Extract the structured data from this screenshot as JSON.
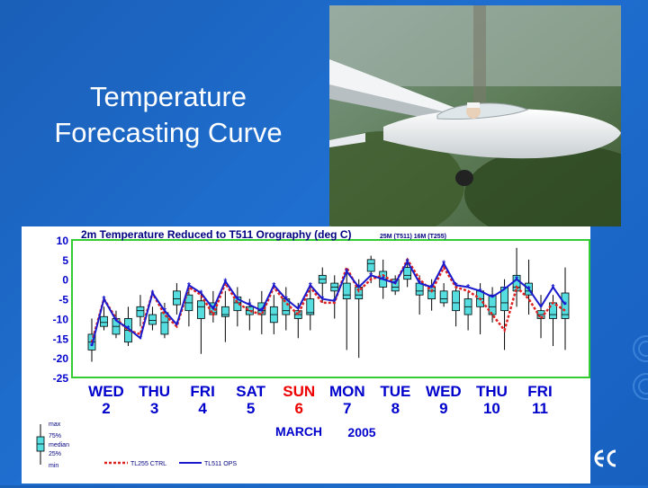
{
  "slide": {
    "title_line1": "Temperature",
    "title_line2": "Forecasting Curve"
  },
  "colors": {
    "background": "#1a5fb8",
    "grid_frame": "#33cc33",
    "box_fill": "#55dde0",
    "ops_line": "#1a1acc",
    "ctrl_line": "#dd2222",
    "day_label": "#0000cc",
    "sunday": "#ee0000"
  },
  "chart_data": {
    "type": "box+line",
    "title": "2m Temperature Reduced to T511 Orography (deg C)",
    "subtitle": "25M (T511) 16M (T255)",
    "xlabel": "MARCH",
    "year": "2005",
    "ylim": [
      -25,
      10
    ],
    "yticks": [
      "10",
      "5",
      "0",
      "-5",
      "-10",
      "-15",
      "-20",
      "-25"
    ],
    "days": [
      {
        "name": "WED",
        "date": "2"
      },
      {
        "name": "THU",
        "date": "3"
      },
      {
        "name": "FRI",
        "date": "4"
      },
      {
        "name": "SAT",
        "date": "5"
      },
      {
        "name": "SUN",
        "date": "6"
      },
      {
        "name": "MON",
        "date": "7"
      },
      {
        "name": "TUE",
        "date": "8"
      },
      {
        "name": "WED",
        "date": "9"
      },
      {
        "name": "THU",
        "date": "10"
      },
      {
        "name": "FRI",
        "date": "11"
      }
    ],
    "legend": {
      "max": "max",
      "p75": "75%",
      "median": "median",
      "p25": "25%",
      "min": "min",
      "ctrl": "TL255 CTRL",
      "ops": "TL511 OPS"
    },
    "series": [
      {
        "name": "TL511 OPS",
        "values": [
          -17,
          -5,
          -10.5,
          -12.5,
          -15,
          -3.5,
          -8,
          -11.5,
          -1.5,
          -3.5,
          -7.5,
          -0.5,
          -5,
          -6.5,
          -8,
          -1.5,
          -5,
          -7.5,
          -1.5,
          -5,
          -5.5,
          2,
          -2,
          1,
          0,
          -1,
          4.5,
          -1,
          -2,
          4,
          -1.5,
          -2,
          -3,
          -4.5,
          -2.5,
          0,
          -2.5,
          -7,
          -2,
          -6.5
        ]
      },
      {
        "name": "TL255 CTRL",
        "values": [
          -16,
          -5,
          -10,
          -13,
          -14,
          -3.5,
          -9,
          -12,
          -2,
          -4,
          -9,
          -1,
          -6,
          -8,
          -9,
          -2,
          -6,
          -9,
          -2,
          -6,
          -6,
          3,
          -3,
          0,
          1,
          -1,
          5,
          0,
          -3,
          3,
          -2,
          -3,
          -5,
          -9,
          -13,
          -2,
          -5,
          -10,
          -6,
          -8
        ]
      }
    ],
    "boxes": [
      {
        "min": -21,
        "q1": -18,
        "med": -16,
        "q3": -14,
        "max": -10
      },
      {
        "min": -13,
        "q1": -12,
        "med": -11,
        "q3": -9.5,
        "max": -7
      },
      {
        "min": -15,
        "q1": -14,
        "med": -12,
        "q3": -10,
        "max": -8
      },
      {
        "min": -17,
        "q1": -16,
        "med": -13,
        "q3": -10,
        "max": -7
      },
      {
        "min": -12,
        "q1": -9.5,
        "med": -8,
        "q3": -7,
        "max": -4
      },
      {
        "min": -13,
        "q1": -11.5,
        "med": -10.5,
        "q3": -9,
        "max": -7
      },
      {
        "min": -15,
        "q1": -14,
        "med": -11,
        "q3": -8.5,
        "max": -6
      },
      {
        "min": -9,
        "q1": -6.5,
        "med": -5,
        "q3": -3,
        "max": -1
      },
      {
        "min": -12,
        "q1": -8,
        "med": -6,
        "q3": -4,
        "max": -2
      },
      {
        "min": -19,
        "q1": -10,
        "med": -7,
        "q3": -5.5,
        "max": -3
      },
      {
        "min": -11,
        "q1": -9,
        "med": -8.5,
        "q3": -6,
        "max": -3
      },
      {
        "min": -16,
        "q1": -9.5,
        "med": -9,
        "q3": -7,
        "max": -3
      },
      {
        "min": -12,
        "q1": -8,
        "med": -6,
        "q3": -4.5,
        "max": -2
      },
      {
        "min": -13,
        "q1": -9,
        "med": -8,
        "q3": -7,
        "max": -5
      },
      {
        "min": -14,
        "q1": -9,
        "med": -8,
        "q3": -6,
        "max": -3
      },
      {
        "min": -14,
        "q1": -11,
        "med": -9,
        "q3": -7,
        "max": -4
      },
      {
        "min": -13,
        "q1": -9,
        "med": -8,
        "q3": -5,
        "max": -2
      },
      {
        "min": -15,
        "q1": -10,
        "med": -9,
        "q3": -8,
        "max": -6
      },
      {
        "min": -13,
        "q1": -9,
        "med": -8.5,
        "q3": -5,
        "max": -1
      },
      {
        "min": -6,
        "q1": -1,
        "med": 0,
        "q3": 1,
        "max": 3
      },
      {
        "min": -10,
        "q1": -3,
        "med": -2,
        "q3": -1,
        "max": 1
      },
      {
        "min": -18,
        "q1": -5,
        "med": -4,
        "q3": -1,
        "max": 2
      },
      {
        "min": -20,
        "q1": -5,
        "med": -4,
        "q3": -2,
        "max": 0
      },
      {
        "min": -1,
        "q1": 2,
        "med": 4,
        "q3": 5,
        "max": 6
      },
      {
        "min": -5,
        "q1": -2,
        "med": 0,
        "q3": 2,
        "max": 5
      },
      {
        "min": -4,
        "q1": -3,
        "med": -2,
        "q3": 0,
        "max": 1
      },
      {
        "min": -2,
        "q1": 0,
        "med": 1,
        "q3": 3,
        "max": 5
      },
      {
        "min": -9,
        "q1": -4,
        "med": -3,
        "q3": -1,
        "max": 1
      },
      {
        "min": -8,
        "q1": -5,
        "med": -3,
        "q3": -2,
        "max": 0
      },
      {
        "min": -7,
        "q1": -6,
        "med": -5,
        "q3": -3,
        "max": -1
      },
      {
        "min": -12,
        "q1": -8,
        "med": -6,
        "q3": -3,
        "max": -1
      },
      {
        "min": -13,
        "q1": -9,
        "med": -7,
        "q3": -5,
        "max": -3
      },
      {
        "min": -14,
        "q1": -7,
        "med": -5,
        "q3": -3,
        "max": -1
      },
      {
        "min": -11,
        "q1": -9,
        "med": -7,
        "q3": -4,
        "max": -2
      },
      {
        "min": -18,
        "q1": -8,
        "med": -6,
        "q3": -2,
        "max": 0
      },
      {
        "min": -7,
        "q1": -3,
        "med": -2,
        "q3": 1,
        "max": 8
      },
      {
        "min": -9,
        "q1": -4,
        "med": -3,
        "q3": -1,
        "max": 5
      },
      {
        "min": -15,
        "q1": -10,
        "med": -9,
        "q3": -8,
        "max": -4
      },
      {
        "min": -17,
        "q1": -10,
        "med": -9,
        "q3": -6,
        "max": -4
      },
      {
        "min": -18,
        "q1": -10,
        "med": -9,
        "q3": -3.5,
        "max": 3
      }
    ]
  }
}
